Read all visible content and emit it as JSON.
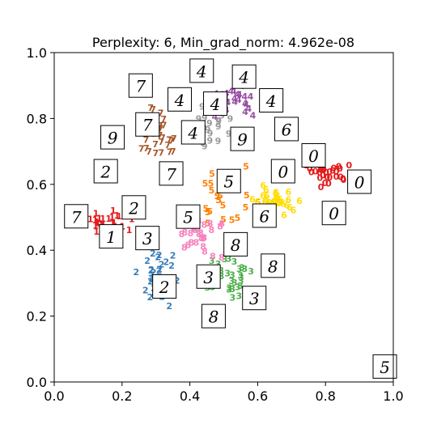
{
  "chart_data": {
    "type": "scatter",
    "title": "Perplexity: 6, Min_grad_norm: 4.962e-08",
    "xlabel": "",
    "ylabel": "",
    "xlim": [
      0.0,
      1.0
    ],
    "ylim": [
      0.0,
      1.0
    ],
    "xticks": [
      "0.0",
      "0.2",
      "0.4",
      "0.6",
      "0.8",
      "1.0"
    ],
    "yticks": [
      "0.0",
      "0.2",
      "0.4",
      "0.6",
      "0.8",
      "1.0"
    ],
    "grid": false,
    "legend": "none",
    "class_colors": {
      "0": "#e41a1c",
      "1": "#e41a1c",
      "2": "#377eb8",
      "3": "#4daf4a",
      "4": "#984ea3",
      "5": "#ff7f00",
      "6": "#ffdd00",
      "7": "#a65628",
      "8": "#f781bf",
      "9": "#999999"
    },
    "clusters": [
      {
        "label": "0",
        "cx": 0.8,
        "cy": 0.63,
        "sx": 0.07,
        "sy": 0.04,
        "n": 30
      },
      {
        "label": "1",
        "cx": 0.16,
        "cy": 0.48,
        "sx": 0.05,
        "sy": 0.03,
        "n": 30
      },
      {
        "label": "2",
        "cx": 0.3,
        "cy": 0.32,
        "sx": 0.05,
        "sy": 0.06,
        "n": 30
      },
      {
        "label": "3",
        "cx": 0.53,
        "cy": 0.33,
        "sx": 0.05,
        "sy": 0.07,
        "n": 30
      },
      {
        "label": "4",
        "cx": 0.52,
        "cy": 0.86,
        "sx": 0.07,
        "sy": 0.04,
        "n": 30
      },
      {
        "label": "5",
        "cx": 0.52,
        "cy": 0.55,
        "sx": 0.07,
        "sy": 0.07,
        "n": 30
      },
      {
        "label": "6",
        "cx": 0.66,
        "cy": 0.55,
        "sx": 0.05,
        "sy": 0.03,
        "n": 30
      },
      {
        "label": "7",
        "cx": 0.3,
        "cy": 0.75,
        "sx": 0.05,
        "sy": 0.06,
        "n": 30
      },
      {
        "label": "8",
        "cx": 0.43,
        "cy": 0.45,
        "sx": 0.05,
        "sy": 0.06,
        "n": 30
      },
      {
        "label": "9",
        "cx": 0.44,
        "cy": 0.77,
        "sx": 0.07,
        "sy": 0.05,
        "n": 30
      }
    ],
    "images": [
      {
        "digit": "4",
        "x": 0.435,
        "y": 0.945
      },
      {
        "digit": "4",
        "x": 0.56,
        "y": 0.927
      },
      {
        "digit": "7",
        "x": 0.255,
        "y": 0.9
      },
      {
        "digit": "4",
        "x": 0.37,
        "y": 0.858
      },
      {
        "digit": "4",
        "x": 0.475,
        "y": 0.845
      },
      {
        "digit": "4",
        "x": 0.64,
        "y": 0.855
      },
      {
        "digit": "7",
        "x": 0.275,
        "y": 0.782
      },
      {
        "digit": "4",
        "x": 0.41,
        "y": 0.758
      },
      {
        "digit": "6",
        "x": 0.685,
        "y": 0.768
      },
      {
        "digit": "9",
        "x": 0.172,
        "y": 0.743
      },
      {
        "digit": "9",
        "x": 0.555,
        "y": 0.738
      },
      {
        "digit": "0",
        "x": 0.765,
        "y": 0.688
      },
      {
        "digit": "2",
        "x": 0.152,
        "y": 0.64
      },
      {
        "digit": "7",
        "x": 0.345,
        "y": 0.633
      },
      {
        "digit": "0",
        "x": 0.675,
        "y": 0.64
      },
      {
        "digit": "0",
        "x": 0.9,
        "y": 0.608
      },
      {
        "digit": "5",
        "x": 0.515,
        "y": 0.61
      },
      {
        "digit": "2",
        "x": 0.235,
        "y": 0.53
      },
      {
        "digit": "7",
        "x": 0.065,
        "y": 0.503
      },
      {
        "digit": "6",
        "x": 0.62,
        "y": 0.505
      },
      {
        "digit": "0",
        "x": 0.825,
        "y": 0.513
      },
      {
        "digit": "5",
        "x": 0.395,
        "y": 0.502
      },
      {
        "digit": "1",
        "x": 0.168,
        "y": 0.442
      },
      {
        "digit": "3",
        "x": 0.275,
        "y": 0.437
      },
      {
        "digit": "8",
        "x": 0.535,
        "y": 0.418
      },
      {
        "digit": "8",
        "x": 0.645,
        "y": 0.353
      },
      {
        "digit": "3",
        "x": 0.455,
        "y": 0.32
      },
      {
        "digit": "2",
        "x": 0.325,
        "y": 0.29
      },
      {
        "digit": "3",
        "x": 0.59,
        "y": 0.255
      },
      {
        "digit": "8",
        "x": 0.47,
        "y": 0.2
      },
      {
        "digit": "5",
        "x": 0.975,
        "y": 0.047
      }
    ]
  }
}
